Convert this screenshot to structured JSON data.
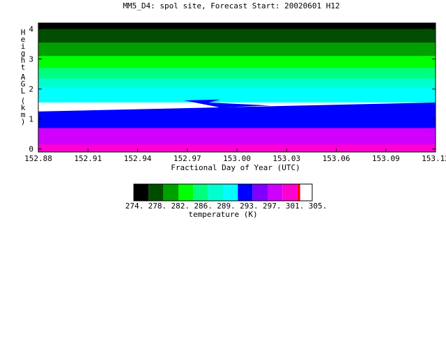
{
  "chart_data": {
    "type": "heatmap",
    "title": "MM5_D4: spol site,  Forecast Start: 20020601 H12",
    "xlabel": "Fractional Day of Year (UTC)",
    "ylabel": "Height AGL (km)",
    "x_ticks": [
      "152.88",
      "152.91",
      "152.94",
      "152.97",
      "153.00",
      "153.03",
      "153.06",
      "153.09",
      "153.12"
    ],
    "x_tick_values": [
      152.88,
      152.91,
      152.94,
      152.97,
      153.0,
      153.03,
      153.06,
      153.09,
      153.12
    ],
    "y_ticks": [
      "0",
      "1",
      "2",
      "3",
      "4"
    ],
    "y_tick_values": [
      0,
      1,
      2,
      3,
      4
    ],
    "xlim": [
      152.88,
      153.12
    ],
    "ylim": [
      -0.1,
      4.2
    ],
    "colorbar": {
      "label": "temperature (K)",
      "tick_labels": [
        "274.",
        "278.",
        "282.",
        "286.",
        "289.",
        "293.",
        "297.",
        "301.",
        "305."
      ],
      "colors": [
        "#000000",
        "#004d00",
        "#00a000",
        "#00ff00",
        "#00ff80",
        "#00ffd0",
        "#00ffff",
        "#0000ff",
        "#8000ff",
        "#d000ff",
        "#ff00d0",
        "#ff0000"
      ]
    },
    "contour_bands": [
      {
        "color": "#ff00d0",
        "y_bottom": -0.1,
        "y_top_start": 0.65,
        "y_top_end": 0.15
      },
      {
        "color": "#d000ff",
        "y_bottom": 0.15,
        "y_top_start": 0.95,
        "y_top_end": 0.7
      },
      {
        "color": "#0000ff",
        "y_bottom": 0.7,
        "y_top_start": 1.25,
        "y_top_end": 1.55
      },
      {
        "color": "#00ffff",
        "y_bottom": 1.55,
        "y_top_start": 2.15,
        "y_top_end": 2.05
      },
      {
        "color": "#00ffd0",
        "y_bottom": 2.05,
        "y_top_start": 2.5,
        "y_top_end": 2.35
      },
      {
        "color": "#00ff80",
        "y_bottom": 2.35,
        "y_top_start": 2.9,
        "y_top_end": 2.7
      },
      {
        "color": "#00ff00",
        "y_bottom": 2.7,
        "y_top_start": 3.3,
        "y_top_end": 3.1
      },
      {
        "color": "#00a000",
        "y_bottom": 3.1,
        "y_top_start": 3.65,
        "y_top_end": 3.55
      },
      {
        "color": "#004d00",
        "y_bottom": 3.55,
        "y_top_start": 4.05,
        "y_top_end": 4.0
      },
      {
        "color": "#000000",
        "y_bottom": 4.0,
        "y_top_start": 4.2,
        "y_top_end": 4.2
      }
    ],
    "grid": false
  }
}
